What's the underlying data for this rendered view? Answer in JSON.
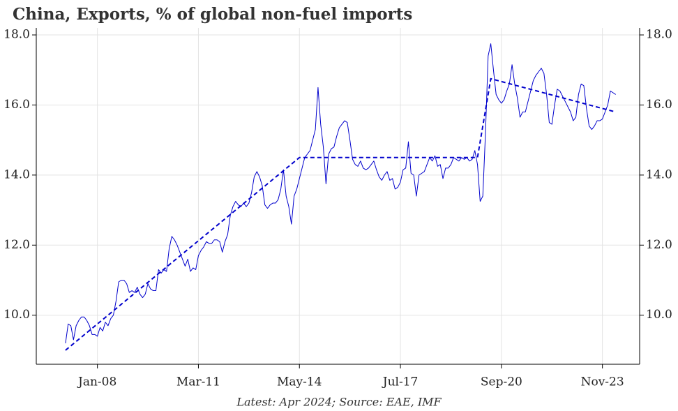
{
  "chart_data": {
    "type": "line",
    "title": "China, Exports, % of global non-fuel imports",
    "footnote": "Latest: Apr 2024; Source: EAE, IMF",
    "x": [
      "2007-01",
      "2007-02",
      "2007-03",
      "2007-04",
      "2007-05",
      "2007-06",
      "2007-07",
      "2007-08",
      "2007-09",
      "2007-10",
      "2007-11",
      "2007-12",
      "2008-01",
      "2008-02",
      "2008-03",
      "2008-04",
      "2008-05",
      "2008-06",
      "2008-07",
      "2008-08",
      "2008-09",
      "2008-10",
      "2008-11",
      "2008-12",
      "2009-01",
      "2009-02",
      "2009-03",
      "2009-04",
      "2009-05",
      "2009-06",
      "2009-07",
      "2009-08",
      "2009-09",
      "2009-10",
      "2009-11",
      "2009-12",
      "2010-01",
      "2010-02",
      "2010-03",
      "2010-04",
      "2010-05",
      "2010-06",
      "2010-07",
      "2010-08",
      "2010-09",
      "2010-10",
      "2010-11",
      "2010-12",
      "2011-01",
      "2011-02",
      "2011-03",
      "2011-04",
      "2011-05",
      "2011-06",
      "2011-07",
      "2011-08",
      "2011-09",
      "2011-10",
      "2011-11",
      "2011-12",
      "2012-01",
      "2012-02",
      "2012-03",
      "2012-04",
      "2012-05",
      "2012-06",
      "2012-07",
      "2012-08",
      "2012-09",
      "2012-10",
      "2012-11",
      "2012-12",
      "2013-01",
      "2013-02",
      "2013-03",
      "2013-04",
      "2013-05",
      "2013-06",
      "2013-07",
      "2013-08",
      "2013-09",
      "2013-10",
      "2013-11",
      "2013-12",
      "2014-01",
      "2014-02",
      "2014-03",
      "2014-04",
      "2014-05",
      "2014-06",
      "2014-07",
      "2014-08",
      "2014-09",
      "2014-10",
      "2014-11",
      "2014-12",
      "2015-01",
      "2015-02",
      "2015-03",
      "2015-04",
      "2015-05",
      "2015-06",
      "2015-07",
      "2015-08",
      "2015-09",
      "2015-10",
      "2015-11",
      "2015-12",
      "2016-01",
      "2016-02",
      "2016-03",
      "2016-04",
      "2016-05",
      "2016-06",
      "2016-07",
      "2016-08",
      "2016-09",
      "2016-10",
      "2016-11",
      "2016-12",
      "2017-01",
      "2017-02",
      "2017-03",
      "2017-04",
      "2017-05",
      "2017-06",
      "2017-07",
      "2017-08",
      "2017-09",
      "2017-10",
      "2017-11",
      "2017-12",
      "2018-01",
      "2018-02",
      "2018-03",
      "2018-04",
      "2018-05",
      "2018-06",
      "2018-07",
      "2018-08",
      "2018-09",
      "2018-10",
      "2018-11",
      "2018-12",
      "2019-01",
      "2019-02",
      "2019-03",
      "2019-04",
      "2019-05",
      "2019-06",
      "2019-07",
      "2019-08",
      "2019-09",
      "2019-10",
      "2019-11",
      "2019-12",
      "2020-01",
      "2020-02",
      "2020-03",
      "2020-04",
      "2020-05",
      "2020-06",
      "2020-07",
      "2020-08",
      "2020-09",
      "2020-10",
      "2020-11",
      "2020-12",
      "2021-01",
      "2021-02",
      "2021-03",
      "2021-04",
      "2021-05",
      "2021-06",
      "2021-07",
      "2021-08",
      "2021-09",
      "2021-10",
      "2021-11",
      "2021-12",
      "2022-01",
      "2022-02",
      "2022-03",
      "2022-04",
      "2022-05",
      "2022-06",
      "2022-07",
      "2022-08",
      "2022-09",
      "2022-10",
      "2022-11",
      "2022-12",
      "2023-01",
      "2023-02",
      "2023-03",
      "2023-04",
      "2023-05",
      "2023-06",
      "2023-07",
      "2023-08",
      "2023-09",
      "2023-10",
      "2023-11",
      "2023-12",
      "2024-01",
      "2024-02",
      "2024-03",
      "2024-04"
    ],
    "series": [
      {
        "color": "#0000cc",
        "values": [
          9.2,
          9.75,
          9.7,
          9.3,
          9.7,
          9.85,
          9.95,
          9.95,
          9.85,
          9.7,
          9.45,
          9.45,
          9.4,
          9.65,
          9.55,
          9.8,
          9.7,
          9.9,
          10.0,
          10.4,
          10.95,
          11.0,
          11.0,
          10.9,
          10.65,
          10.7,
          10.65,
          10.8,
          10.6,
          10.5,
          10.6,
          10.9,
          10.75,
          10.7,
          10.7,
          11.3,
          11.2,
          11.3,
          11.25,
          11.9,
          12.25,
          12.15,
          12.0,
          11.8,
          11.6,
          11.4,
          11.6,
          11.25,
          11.35,
          11.3,
          11.7,
          11.85,
          11.95,
          12.1,
          12.05,
          12.05,
          12.15,
          12.15,
          12.1,
          11.8,
          12.1,
          12.3,
          12.85,
          13.1,
          13.25,
          13.15,
          13.1,
          13.2,
          13.1,
          13.2,
          13.5,
          13.95,
          14.1,
          13.95,
          13.7,
          13.15,
          13.05,
          13.15,
          13.2,
          13.2,
          13.3,
          13.6,
          14.15,
          13.4,
          13.1,
          12.6,
          13.4,
          13.6,
          13.9,
          14.2,
          14.5,
          14.6,
          14.7,
          15.0,
          15.3,
          16.5,
          15.45,
          14.8,
          13.75,
          14.6,
          14.75,
          14.8,
          15.1,
          15.35,
          15.45,
          15.55,
          15.5,
          15.0,
          14.45,
          14.3,
          14.25,
          14.4,
          14.2,
          14.15,
          14.2,
          14.3,
          14.4,
          14.15,
          13.95,
          13.85,
          14.0,
          14.1,
          13.85,
          13.9,
          13.6,
          13.65,
          13.8,
          14.15,
          14.2,
          14.95,
          14.05,
          14.0,
          13.4,
          14.0,
          14.05,
          14.1,
          14.3,
          14.5,
          14.4,
          14.55,
          14.25,
          14.3,
          13.9,
          14.2,
          14.2,
          14.3,
          14.5,
          14.45,
          14.4,
          14.5,
          14.45,
          14.5,
          14.4,
          14.45,
          14.7,
          14.3,
          13.25,
          13.4,
          15.2,
          17.4,
          17.75,
          17.0,
          16.3,
          16.15,
          16.05,
          16.15,
          16.4,
          16.6,
          17.15,
          16.6,
          16.2,
          15.65,
          15.8,
          15.8,
          16.1,
          16.4,
          16.7,
          16.85,
          16.95,
          17.05,
          16.9,
          16.3,
          15.5,
          15.45,
          16.0,
          16.45,
          16.4,
          16.25,
          16.1,
          15.95,
          15.8,
          15.55,
          15.65,
          16.3,
          16.6,
          16.55,
          15.9,
          15.4,
          15.3,
          15.4,
          15.55,
          15.55,
          15.6,
          15.8,
          16.0,
          16.4,
          16.35,
          16.3
        ]
      },
      {
        "color": "#0000cc",
        "dashed": true,
        "x": [
          "2007-01",
          "2014-05",
          "2019-12",
          "2020-05",
          "2024-04"
        ],
        "values": [
          9.0,
          14.5,
          14.5,
          16.75,
          15.8
        ]
      }
    ],
    "xlim": [
      "2006-02",
      "2025-01"
    ],
    "xticks": [
      {
        "value": "2008-01",
        "label": "Jan-08"
      },
      {
        "value": "2011-03",
        "label": "Mar-11"
      },
      {
        "value": "2014-05",
        "label": "May-14"
      },
      {
        "value": "2017-07",
        "label": "Jul-17"
      },
      {
        "value": "2020-09",
        "label": "Sep-20"
      },
      {
        "value": "2023-11",
        "label": "Nov-23"
      }
    ],
    "ylim": [
      8.6,
      18.2
    ],
    "yticks": [
      {
        "value": 10,
        "label": "10.0"
      },
      {
        "value": 12,
        "label": "12.0"
      },
      {
        "value": 14,
        "label": "14.0"
      },
      {
        "value": 16,
        "label": "16.0"
      },
      {
        "value": 18,
        "label": "18.0"
      }
    ],
    "y2lim": [
      8.6,
      18.2
    ],
    "y2ticks": [
      {
        "value": 10,
        "label": "10.0"
      },
      {
        "value": 12,
        "label": "12.0"
      },
      {
        "value": 14,
        "label": "14.0"
      },
      {
        "value": 16,
        "label": "16.0"
      },
      {
        "value": 18,
        "label": "18.0"
      }
    ],
    "grid": true
  }
}
